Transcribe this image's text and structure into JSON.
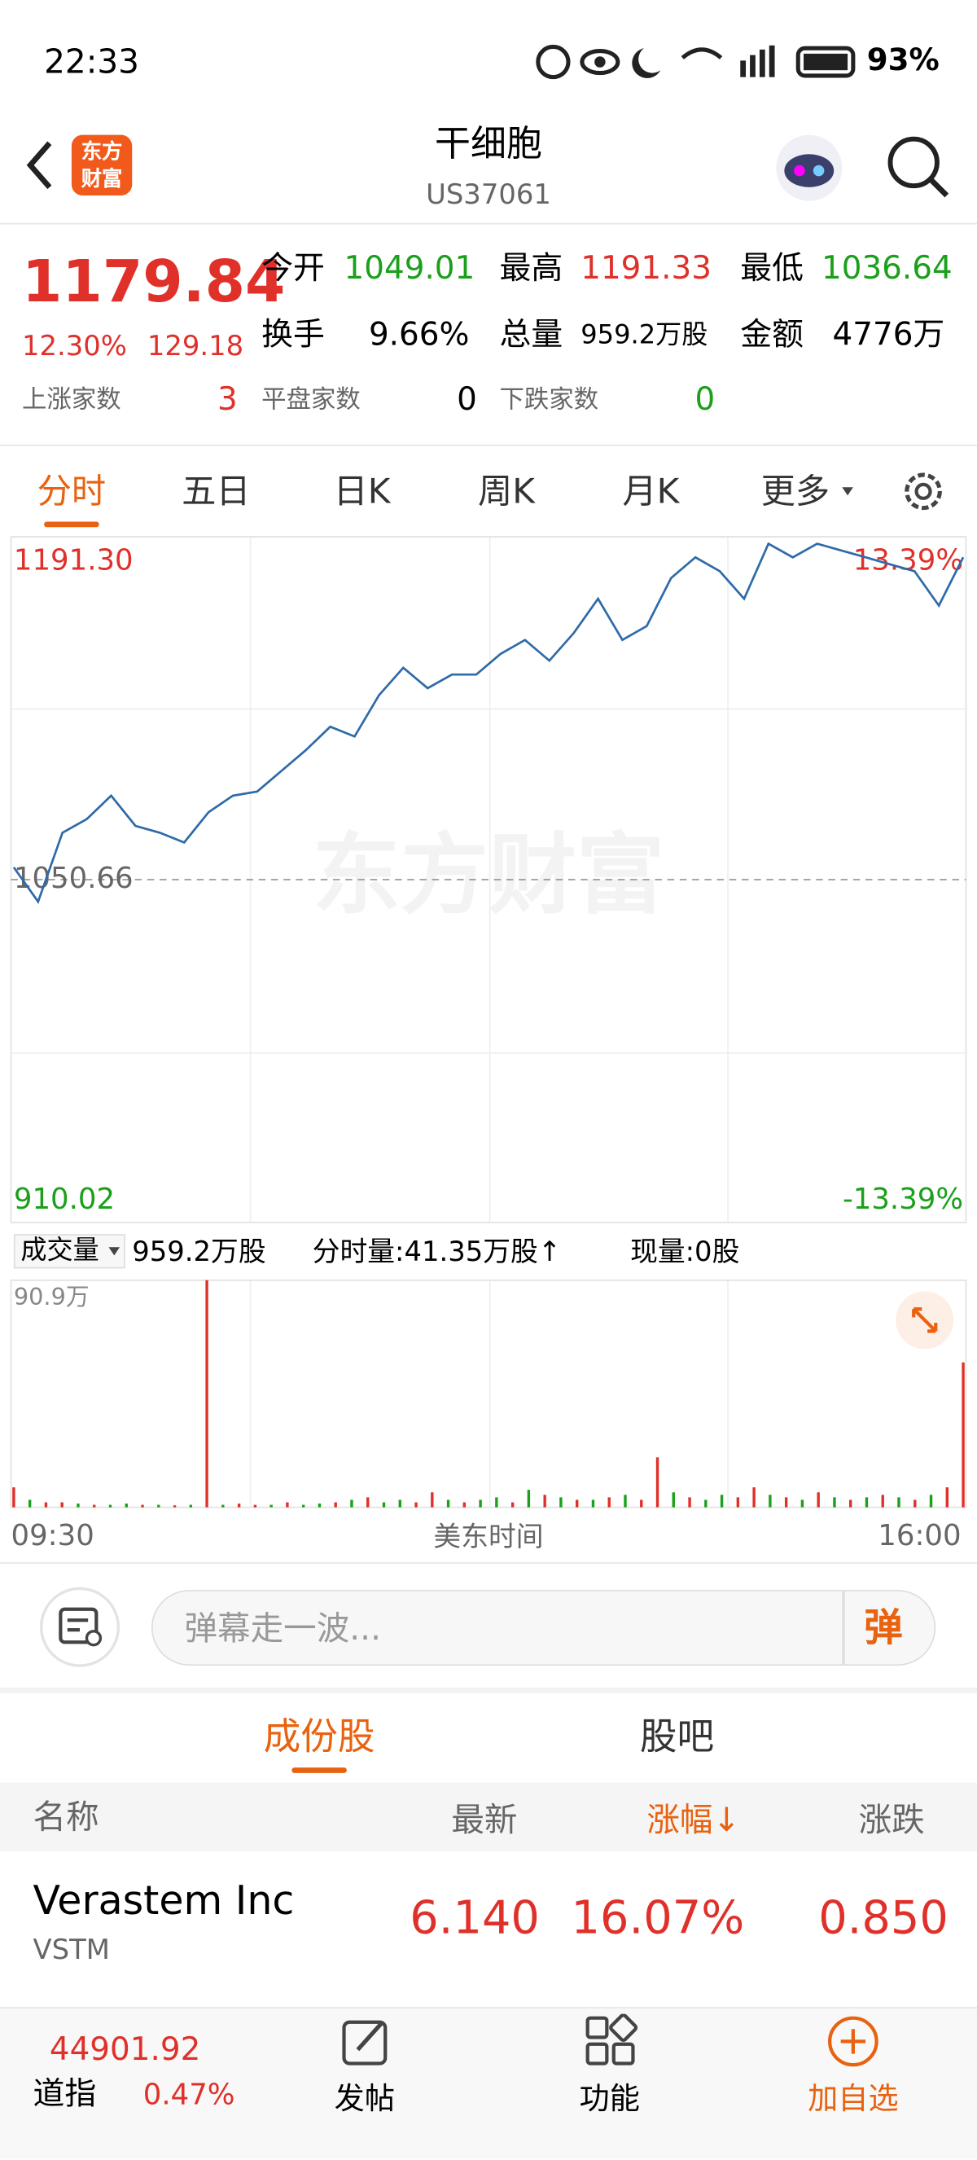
{
  "status_bar": {
    "time": "22:33",
    "battery": "93%"
  },
  "header": {
    "title": "干细胞",
    "code": "US37061",
    "logo": "东方财富"
  },
  "quote": {
    "price": "1179.84",
    "change_pct": "12.30%",
    "change": "129.18",
    "open_label": "今开",
    "open": "1049.01",
    "high_label": "最高",
    "high": "1191.33",
    "low_label": "最低",
    "low": "1036.64",
    "turnover_label": "换手",
    "turnover": "9.66%",
    "volume_label": "总量",
    "volume": "959.2万股",
    "amount_label": "金额",
    "amount": "4776万",
    "up_label": "上涨家数",
    "up_count": "3",
    "flat_label": "平盘家数",
    "flat_count": "0",
    "down_label": "下跌家数",
    "down_count": "0"
  },
  "tabs": [
    "分时",
    "五日",
    "日K",
    "周K",
    "月K",
    "更多"
  ],
  "chart_data": [
    {
      "type": "line",
      "color": "#2f6aa8",
      "watermark": "东方财富",
      "values": [
        1055.7,
        1041.6,
        1069.9,
        1075.5,
        1085.1,
        1072.7,
        1069.9,
        1065.9,
        1078.3,
        1085.1,
        1086.8,
        1095.3,
        1103.8,
        1113.4,
        1109.4,
        1126.3,
        1137.6,
        1129.2,
        1134.8,
        1134.8,
        1143.3,
        1149.0,
        1140.5,
        1151.8,
        1165.9,
        1149.0,
        1154.7,
        1174.4,
        1182.9,
        1177.2,
        1165.9,
        1188.5,
        1182.9,
        1188.5,
        1185.7,
        1182.9,
        1180.0,
        1177.2,
        1163.1,
        1182.9
      ],
      "ylim": [
        910.02,
        1191.3
      ],
      "yticks": [
        {
          "value": 1191.3,
          "label": "1191.30"
        },
        1050.66,
        910.02
      ],
      "y2lim": [
        -13.39,
        13.39
      ],
      "y2ticks": [
        {
          "value": 13.39,
          "label": "13.39%"
        },
        {
          "value": -13.39,
          "label": "-13.39%"
        }
      ]
    },
    {
      "type": "bar",
      "label": "成交量",
      "total": "959.2万股",
      "period_volume": "分时量:41.35万股↑",
      "current_volume": "现量:0股",
      "values": [
        8,
        3,
        2,
        2,
        1.5,
        1,
        1,
        1.5,
        1,
        1,
        0.8,
        1,
        90.9,
        1,
        1.5,
        1,
        1,
        2,
        1,
        1.5,
        2,
        3,
        4,
        2,
        3,
        2,
        6,
        3,
        2,
        3,
        4,
        2,
        7,
        5,
        4,
        3,
        3,
        4,
        5,
        3,
        20,
        6,
        4,
        3,
        5,
        4,
        8,
        5,
        4,
        3,
        6,
        4,
        3,
        4,
        5,
        4,
        3,
        5,
        8,
        58
      ],
      "colors": [
        "#e0302a",
        "#1aa01a",
        "#e0302a",
        "#e0302a",
        "#1aa01a",
        "#e0302a",
        "#1aa01a",
        "#1aa01a",
        "#e0302a",
        "#1aa01a",
        "#e0302a",
        "#1aa01a",
        "#e0302a",
        "#1aa01a",
        "#e0302a",
        "#e0302a",
        "#1aa01a",
        "#e0302a",
        "#1aa01a",
        "#1aa01a",
        "#e0302a",
        "#1aa01a",
        "#e0302a",
        "#1aa01a",
        "#1aa01a",
        "#e0302a",
        "#e0302a",
        "#1aa01a",
        "#e0302a",
        "#1aa01a",
        "#1aa01a",
        "#e0302a",
        "#1aa01a",
        "#e0302a",
        "#1aa01a",
        "#e0302a",
        "#1aa01a",
        "#e0302a",
        "#1aa01a",
        "#e0302a",
        "#e0302a",
        "#1aa01a",
        "#e0302a",
        "#1aa01a",
        "#1aa01a",
        "#e0302a",
        "#e0302a",
        "#1aa01a",
        "#e0302a",
        "#1aa01a",
        "#e0302a",
        "#1aa01a",
        "#e0302a",
        "#1aa01a",
        "#e0302a",
        "#1aa01a",
        "#e0302a",
        "#1aa01a",
        "#e0302a",
        "#e0302a"
      ],
      "ylim": [
        0,
        90.9
      ],
      "yticks": [
        {
          "value": 90.9,
          "label": "90.9万"
        }
      ],
      "x_labels": [
        "09:30",
        "美东时间",
        "16:00"
      ]
    }
  ],
  "comment": {
    "placeholder": "弹幕走一波...",
    "button": "弹"
  },
  "section_tabs": [
    "成份股",
    "股吧"
  ],
  "table": {
    "columns": [
      "名称",
      "最新",
      "涨幅↓",
      "涨跌"
    ],
    "rows": [
      {
        "name": "Verastem Inc",
        "symbol": "VSTM",
        "price": "6.140",
        "change_pct": "16.07%",
        "change": "0.850"
      }
    ]
  },
  "bottom_nav": {
    "index_value": "44901.92",
    "index_name": "道指",
    "index_change": "0.47%",
    "items": [
      "发帖",
      "功能",
      "加自选"
    ]
  }
}
